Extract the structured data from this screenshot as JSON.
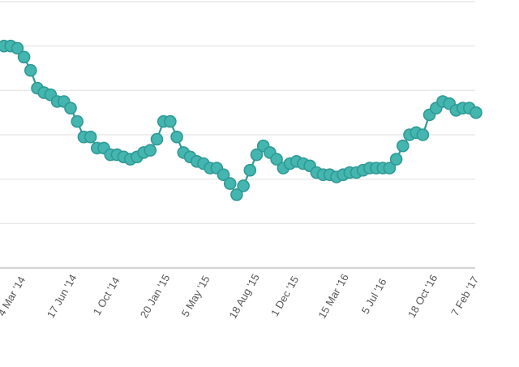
{
  "chart_data": {
    "type": "line",
    "title": "",
    "xlabel": "",
    "ylabel": "",
    "grid": true,
    "legend": "none",
    "colors": {
      "series": "#45b5b0",
      "series_dark": "#2e9a95",
      "grid": "#e3e3e3",
      "axis": "#d6d6d6",
      "label": "#555555"
    },
    "x_ticks": [
      "4 Mar '14",
      "17 Jun '14",
      "1 Oct '14",
      "20 Jan '15",
      "5 May '15",
      "18 Aug '15",
      "1 Dec '15",
      "15 Mar '16",
      "5 Jul '16",
      "18 Oct '16",
      "7 Feb '17"
    ],
    "ylim": [
      0,
      6
    ],
    "series": [
      {
        "values": [
          5.0,
          5.0,
          4.95,
          4.75,
          4.45,
          4.05,
          3.95,
          3.9,
          3.75,
          3.75,
          3.6,
          3.3,
          2.95,
          2.95,
          2.7,
          2.7,
          2.55,
          2.55,
          2.5,
          2.45,
          2.5,
          2.6,
          2.65,
          2.9,
          3.3,
          3.3,
          2.95,
          2.6,
          2.5,
          2.4,
          2.35,
          2.25,
          2.25,
          2.1,
          1.9,
          1.65,
          1.85,
          2.2,
          2.55,
          2.75,
          2.6,
          2.45,
          2.25,
          2.35,
          2.4,
          2.35,
          2.3,
          2.15,
          2.1,
          2.1,
          2.05,
          2.1,
          2.15,
          2.15,
          2.2,
          2.25,
          2.25,
          2.25,
          2.25,
          2.45,
          2.75,
          3.0,
          3.05,
          3.0,
          3.45,
          3.6,
          3.75,
          3.7,
          3.55,
          3.6,
          3.6,
          3.5
        ]
      }
    ]
  }
}
